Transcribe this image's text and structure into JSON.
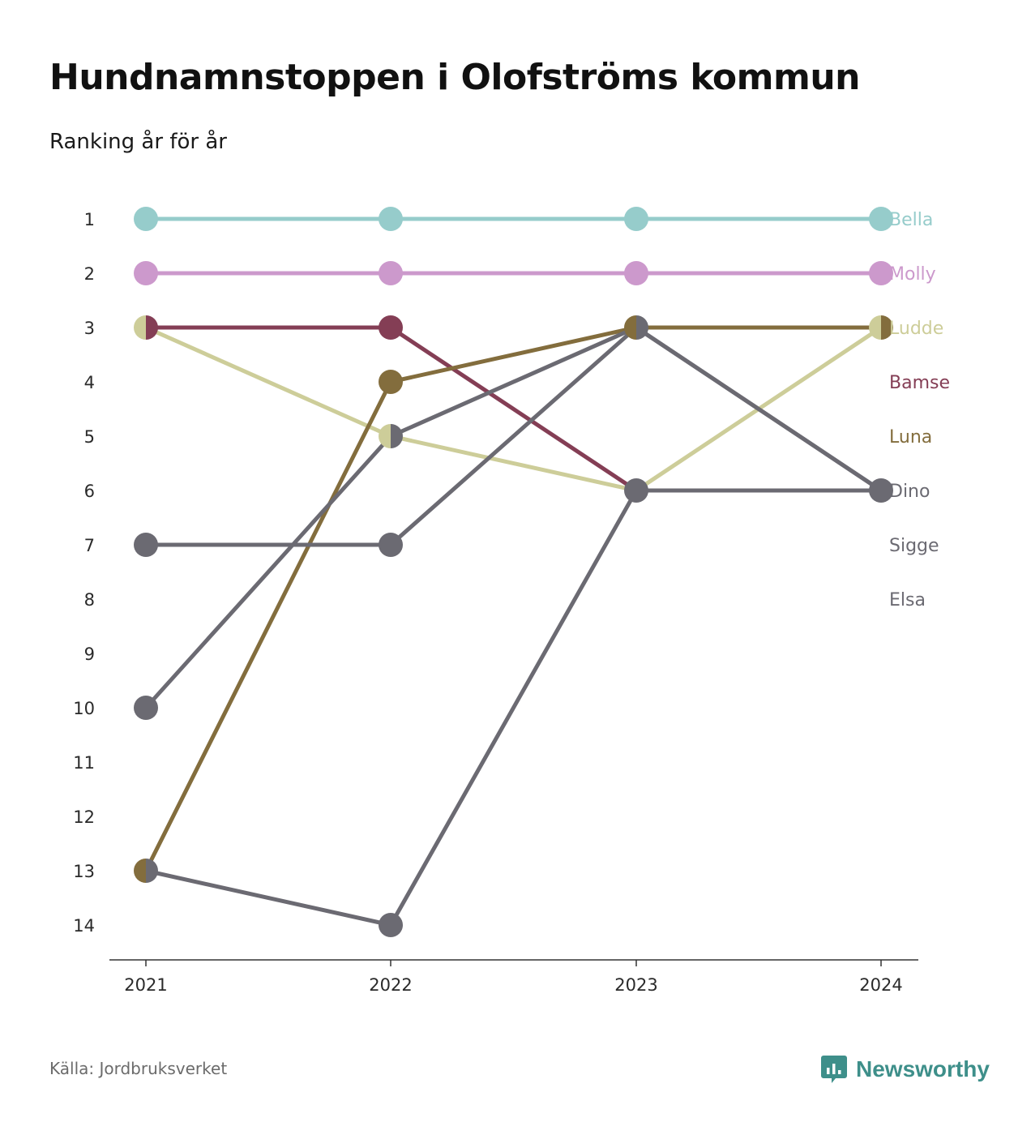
{
  "header": {
    "title": "Hundnamnstoppen i Olofströms kommun",
    "subtitle": "Ranking år för år"
  },
  "footer": {
    "source": "Källa: Jordbruksverket",
    "brand": "Newsworthy",
    "brand_icon": "newsworthy-logo-icon",
    "brand_color": "#3e8f8a"
  },
  "chart_data": {
    "type": "line",
    "subtype": "bump",
    "x": [
      "2021",
      "2022",
      "2023",
      "2024"
    ],
    "y_ticks": [
      1,
      2,
      3,
      4,
      5,
      6,
      7,
      8,
      9,
      10,
      11,
      12,
      13,
      14
    ],
    "ylim": [
      1,
      14
    ],
    "y_reversed": true,
    "grid": false,
    "legend_placement": "right-end labels",
    "series": [
      {
        "name": "Bella",
        "color": "#96cccb",
        "values": [
          1,
          1,
          1,
          1
        ]
      },
      {
        "name": "Molly",
        "color": "#cc99cc",
        "values": [
          2,
          2,
          2,
          2
        ]
      },
      {
        "name": "Ludde",
        "color": "#cdcd99",
        "values": [
          3,
          5,
          6,
          3
        ]
      },
      {
        "name": "Bamse",
        "color": "#843e55",
        "values": [
          3,
          3,
          6,
          null
        ]
      },
      {
        "name": "Luna",
        "color": "#836d3d",
        "values": [
          13,
          4,
          3,
          3
        ]
      },
      {
        "name": "Dino",
        "color": "#6b6a72",
        "values": [
          10,
          5,
          3,
          6
        ]
      },
      {
        "name": "Sigge",
        "color": "#6b6a72",
        "values": [
          7,
          7,
          3,
          6
        ]
      },
      {
        "name": "Elsa",
        "color": "#6b6a72",
        "values": [
          13,
          14,
          6,
          6
        ]
      }
    ]
  }
}
